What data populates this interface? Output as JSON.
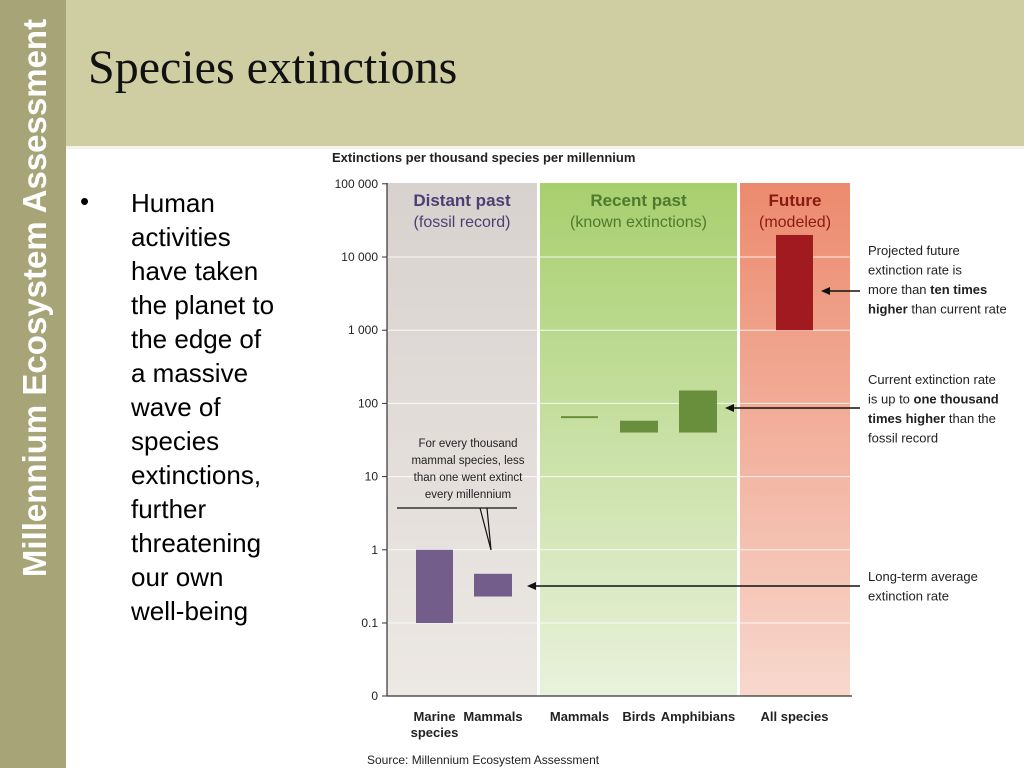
{
  "slide": {
    "sidebar_text": "Millennium Ecosystem Assessment",
    "title": "Species extinctions",
    "bullet": "Human activities have taken the planet to the edge of a massive wave of species extinctions, further threatening our own well-being",
    "colors": {
      "sidebar": "#a7a478",
      "header": "#cfcea3"
    }
  },
  "chart_data": {
    "type": "bar",
    "title": "Extinctions per thousand species per millennium",
    "y_scale": "log",
    "y_ticks": [
      "100 000",
      "10 000",
      "1 000",
      "100",
      "10",
      "1",
      "0.1",
      "0"
    ],
    "ylim": [
      0,
      100000
    ],
    "sections": [
      {
        "title": "Distant past",
        "subtitle": "(fossil record)",
        "color": "#e2dcd8",
        "title_color": "#4d3f73"
      },
      {
        "title": "Recent past",
        "subtitle": "(known extinctions)",
        "color": "#bdda8a",
        "title_color": "#4e7a2e"
      },
      {
        "title": "Future",
        "subtitle": "(modeled)",
        "color": "#f2a38a",
        "title_color": "#8b1a13"
      }
    ],
    "categories": [
      "Marine species",
      "Mammals",
      "Mammals",
      "Birds",
      "Amphibians",
      "All species"
    ],
    "category_labels": [
      [
        "Marine",
        "species"
      ],
      [
        "Mammals"
      ],
      [
        "Mammals"
      ],
      [
        "Birds"
      ],
      [
        "Amphibians"
      ],
      [
        "All species"
      ]
    ],
    "ranges": [
      {
        "category": "Marine species",
        "low": 0.1,
        "high": 1,
        "color": "#735d8a"
      },
      {
        "category": "Mammals",
        "low": 0.23,
        "high": 0.47,
        "color": "#735d8a"
      },
      {
        "category": "Mammals",
        "low": 63,
        "high": 67,
        "color": "#6a8f3c"
      },
      {
        "category": "Birds",
        "low": 40,
        "high": 58,
        "color": "#6a8f3c"
      },
      {
        "category": "Amphibians",
        "low": 40,
        "high": 150,
        "color": "#6a8f3c"
      },
      {
        "category": "All species",
        "low": 1000,
        "high": 20000,
        "color": "#a01a1f"
      }
    ],
    "annotations": [
      {
        "id": "future",
        "lines": [
          [
            "Projected future"
          ],
          [
            "extinction rate is"
          ],
          [
            "more than ",
            {
              "b": "ten times"
            }
          ],
          [
            {
              "b": "higher"
            },
            " than current rate"
          ]
        ]
      },
      {
        "id": "current",
        "lines": [
          [
            "Current extinction rate"
          ],
          [
            "is up to ",
            {
              "b": "one thousand"
            }
          ],
          [
            {
              "b": "times higher"
            },
            " than the"
          ],
          [
            "fossil record"
          ]
        ]
      },
      {
        "id": "longterm",
        "lines": [
          [
            "Long-term average"
          ],
          [
            "extinction rate"
          ]
        ]
      },
      {
        "id": "mammal-note",
        "lines": [
          [
            "For every thousand"
          ],
          [
            "mammal species, less"
          ],
          [
            "than one went extinct"
          ],
          [
            "every millennium"
          ]
        ]
      }
    ],
    "source": "Source: Millennium Ecosystem Assessment"
  }
}
